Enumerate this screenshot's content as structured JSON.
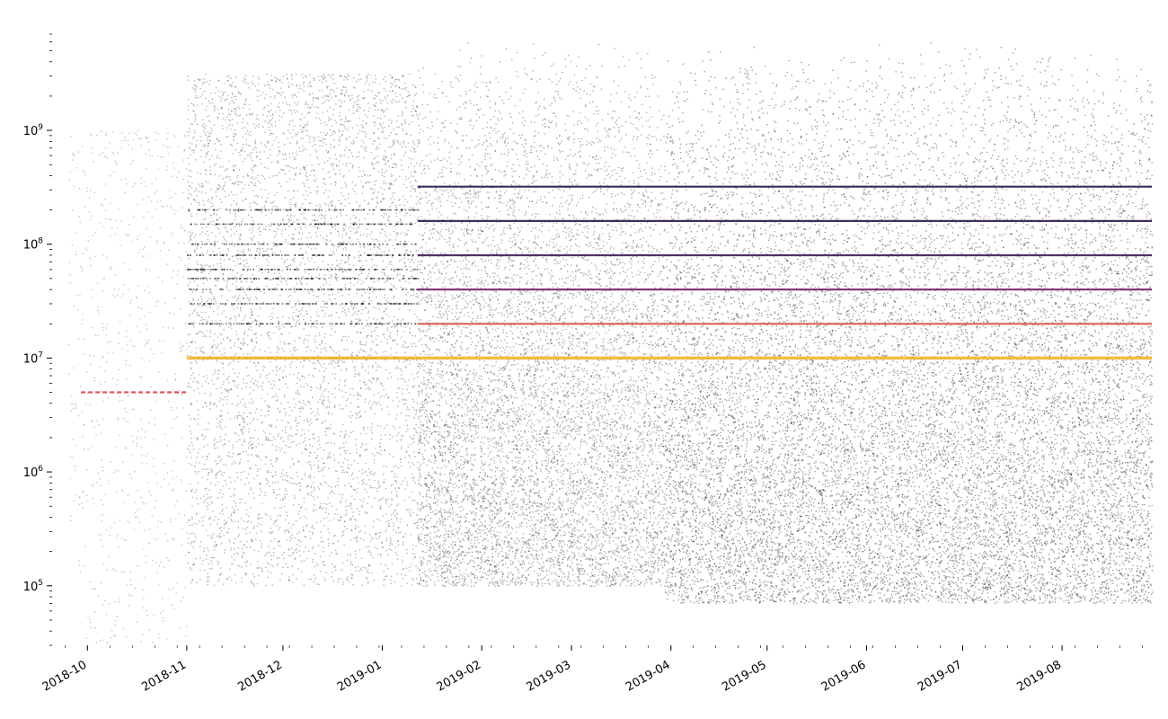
{
  "chart_data": {
    "type": "scatter",
    "title": "",
    "xlabel": "",
    "ylabel": "",
    "x_scale": "time",
    "y_scale": "log",
    "xlim": [
      "2018-09-20",
      "2019-08-29"
    ],
    "ylim": [
      30000,
      7000000000
    ],
    "grid": false,
    "x_tick_labels": [
      "2018-10",
      "2018-11",
      "2018-12",
      "2019-01",
      "2019-02",
      "2019-03",
      "2019-04",
      "2019-05",
      "2019-06",
      "2019-07",
      "2019-08"
    ],
    "x_tick_dates": [
      "2018-10-01",
      "2018-11-01",
      "2018-12-01",
      "2019-01-01",
      "2019-02-01",
      "2019-03-01",
      "2019-04-01",
      "2019-05-01",
      "2019-06-01",
      "2019-07-01",
      "2019-08-01"
    ],
    "y_ticks": [
      {
        "value": 100000,
        "label": "10",
        "exp": "5"
      },
      {
        "value": 1000000,
        "label": "10",
        "exp": "6"
      },
      {
        "value": 10000000,
        "label": "10",
        "exp": "7"
      },
      {
        "value": 100000000,
        "label": "10",
        "exp": "8"
      },
      {
        "value": 1000000000,
        "label": "10",
        "exp": "9"
      }
    ],
    "bands": [
      {
        "value": 10000000,
        "color": "#f2b630",
        "start": "2018-11-01",
        "end": "2019-08-29"
      },
      {
        "value": 20000000,
        "color": "#d75040",
        "start": "2019-01-12",
        "end": "2019-08-29"
      },
      {
        "value": 40000000,
        "color": "#7a2468",
        "start": "2019-01-12",
        "end": "2019-08-29"
      },
      {
        "value": 80000000,
        "color": "#3d1a58",
        "start": "2019-01-12",
        "end": "2019-08-29"
      },
      {
        "value": 160000000,
        "color": "#2a1a48",
        "start": "2019-01-12",
        "end": "2019-08-29"
      },
      {
        "value": 320000000,
        "color": "#221640",
        "start": "2019-01-12",
        "end": "2019-08-29"
      },
      {
        "value": 5000000,
        "color": "#d94450",
        "start": "2018-09-29",
        "end": "2018-11-01"
      }
    ],
    "scatter_color": "#000000"
  }
}
